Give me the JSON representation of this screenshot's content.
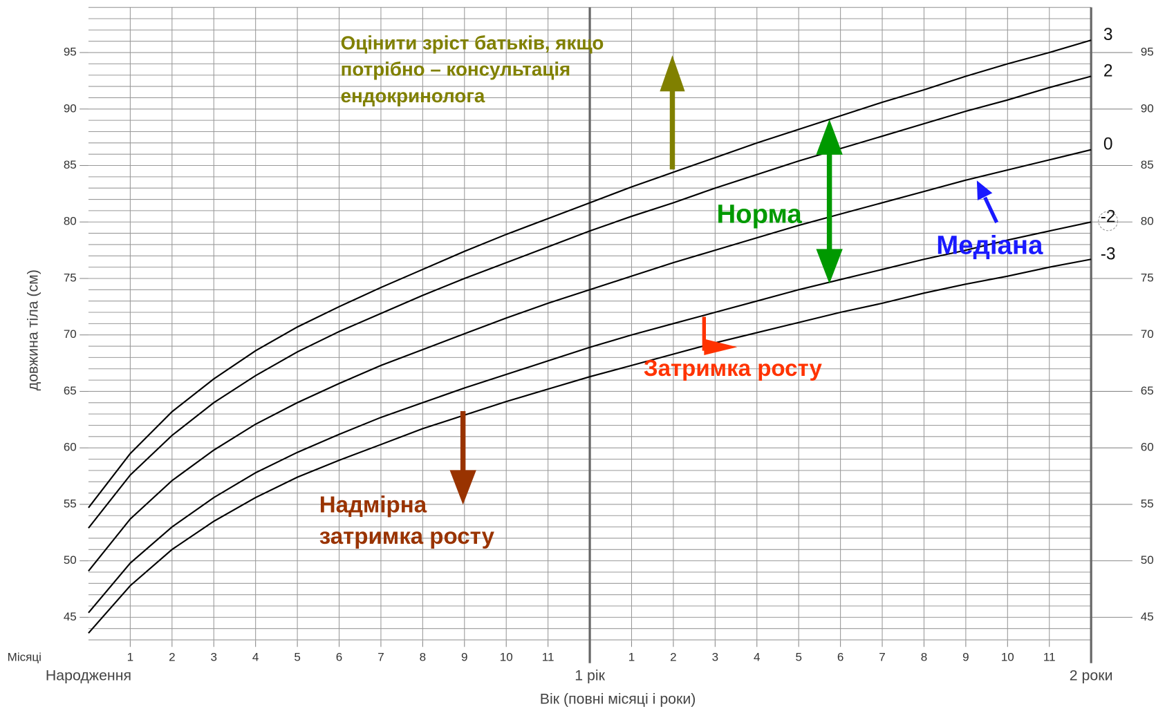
{
  "chart_data": {
    "type": "line",
    "xlabel": "Вік (повні місяці і роки)",
    "ylabel": "довжина тіла (см)",
    "x_row_label": "Місяці",
    "xlim": [
      0,
      24
    ],
    "ylim": [
      42.9,
      99.0
    ],
    "yticks": [
      45,
      50,
      55,
      60,
      65,
      70,
      75,
      80,
      85,
      90,
      95
    ],
    "xticks": [
      1,
      2,
      3,
      4,
      5,
      6,
      7,
      8,
      9,
      10,
      11,
      {
        "value": 13,
        "label": "1"
      },
      {
        "value": 14,
        "label": "2"
      },
      {
        "value": 15,
        "label": "3"
      },
      {
        "value": 16,
        "label": "4"
      },
      {
        "value": 17,
        "label": "5"
      },
      {
        "value": 18,
        "label": "6"
      },
      {
        "value": 19,
        "label": "7"
      },
      {
        "value": 20,
        "label": "8"
      },
      {
        "value": 21,
        "label": "9"
      },
      {
        "value": 22,
        "label": "10"
      },
      {
        "value": 23,
        "label": "11"
      }
    ],
    "period_labels": [
      {
        "value": 0,
        "label": "Народження"
      },
      {
        "value": 12,
        "label": "1 рік"
      },
      {
        "value": 24,
        "label": "2 роки"
      }
    ],
    "grid": {
      "x_step": 1,
      "y_step": 1
    },
    "x": [
      0,
      1,
      2,
      3,
      4,
      5,
      6,
      7,
      8,
      9,
      10,
      11,
      12,
      13,
      14,
      15,
      16,
      17,
      18,
      19,
      20,
      21,
      22,
      23,
      24
    ],
    "series": [
      {
        "name": "3",
        "color": "#000000",
        "values": [
          54.7,
          59.5,
          63.2,
          66.1,
          68.6,
          70.7,
          72.5,
          74.2,
          75.8,
          77.4,
          78.9,
          80.3,
          81.7,
          83.1,
          84.4,
          85.7,
          87.0,
          88.2,
          89.4,
          90.6,
          91.7,
          92.9,
          94.0,
          95.0,
          96.1
        ]
      },
      {
        "name": "2",
        "color": "#000000",
        "values": [
          52.9,
          57.6,
          61.1,
          64.0,
          66.4,
          68.5,
          70.3,
          71.9,
          73.5,
          75.0,
          76.4,
          77.8,
          79.2,
          80.5,
          81.7,
          83.0,
          84.2,
          85.4,
          86.5,
          87.6,
          88.7,
          89.8,
          90.8,
          91.9,
          92.9
        ]
      },
      {
        "name": "0",
        "color": "#000000",
        "values": [
          49.1,
          53.7,
          57.1,
          59.8,
          62.1,
          64.0,
          65.7,
          67.3,
          68.7,
          70.1,
          71.5,
          72.8,
          74.0,
          75.2,
          76.4,
          77.5,
          78.6,
          79.7,
          80.7,
          81.7,
          82.7,
          83.7,
          84.6,
          85.5,
          86.4
        ]
      },
      {
        "name": "-2",
        "color": "#000000",
        "values": [
          45.4,
          49.8,
          53.0,
          55.6,
          57.8,
          59.6,
          61.2,
          62.7,
          64.0,
          65.3,
          66.5,
          67.7,
          68.9,
          70.0,
          71.0,
          72.0,
          73.0,
          74.0,
          74.9,
          75.8,
          76.7,
          77.5,
          78.4,
          79.2,
          80.0
        ]
      },
      {
        "name": "-3",
        "color": "#000000",
        "values": [
          43.6,
          47.8,
          51.0,
          53.5,
          55.6,
          57.4,
          58.9,
          60.3,
          61.7,
          62.9,
          64.1,
          65.2,
          66.3,
          67.3,
          68.3,
          69.3,
          70.2,
          71.1,
          72.0,
          72.8,
          73.7,
          74.5,
          75.2,
          76.0,
          76.7
        ]
      }
    ],
    "annotations": [
      {
        "lines": [
          "Оцінити зріст батьків, якщо",
          "потрібно – консультація",
          "ендокринолога"
        ],
        "color": "#808000"
      },
      {
        "lines": [
          "Норма"
        ],
        "color": "#009900"
      },
      {
        "lines": [
          "Медіана"
        ],
        "color": "#1a1aff"
      },
      {
        "lines": [
          "Затримка росту"
        ],
        "color": "#ff3300"
      },
      {
        "lines": [
          "Надмірна",
          "затримка росту"
        ],
        "color": "#993300"
      }
    ]
  }
}
